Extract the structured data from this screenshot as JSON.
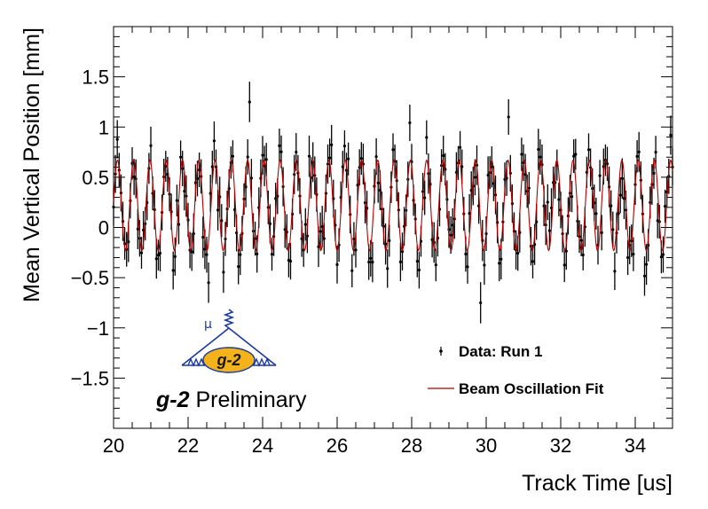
{
  "chart_data": {
    "type": "scatter",
    "xlabel": "Track Time [us]",
    "ylabel": "Mean Vertical Position [mm]",
    "xlim": [
      20,
      35
    ],
    "ylim": [
      -2.0,
      2.0
    ],
    "x_ticks": [
      20,
      22,
      24,
      26,
      28,
      30,
      32,
      34
    ],
    "y_ticks": [
      -1.5,
      -1,
      -0.5,
      0,
      0.5,
      1,
      1.5
    ],
    "x_tick_labels": [
      "20",
      "22",
      "24",
      "26",
      "28",
      "30",
      "32",
      "34"
    ],
    "y_tick_labels": [
      "−1.5",
      "−1",
      "−0.5",
      "0",
      "0.5",
      "1",
      "1.5"
    ],
    "grid": false,
    "legend_position": "bottom-right",
    "series": [
      {
        "name": "Data: Run 1",
        "kind": "points-with-errors",
        "color": "#000000",
        "x_start": 20.0,
        "x_step": 0.05,
        "y_start": 0.25,
        "y_error": 0.18,
        "oscillation_frequency_per_us": 2.29,
        "oscillation_amplitude": 0.45,
        "oscillation_offset": 0.22,
        "noise_std": 0.15,
        "highlighted_points": [
          {
            "x": 23.65,
            "y": 1.25
          },
          {
            "x": 29.85,
            "y": -0.75
          },
          {
            "x": 22.55,
            "y": -0.55
          },
          {
            "x": 30.6,
            "y": 1.1
          }
        ]
      },
      {
        "name": "Beam Oscillation Fit",
        "kind": "line",
        "color": "#b30000",
        "frequency_per_us": 2.29,
        "amplitude": 0.45,
        "offset": 0.22,
        "phase_reference_x": 20.0
      }
    ]
  },
  "logo": {
    "mu_label": "μ",
    "oval_label": "g-2",
    "caption_bold": "g-2",
    "caption_rest": " Preliminary",
    "oval_color": "#f5b31b",
    "line_color": "#1b3a9a"
  },
  "colors": {
    "data": "#000000",
    "fit": "#b30000",
    "frame": "#000000"
  }
}
